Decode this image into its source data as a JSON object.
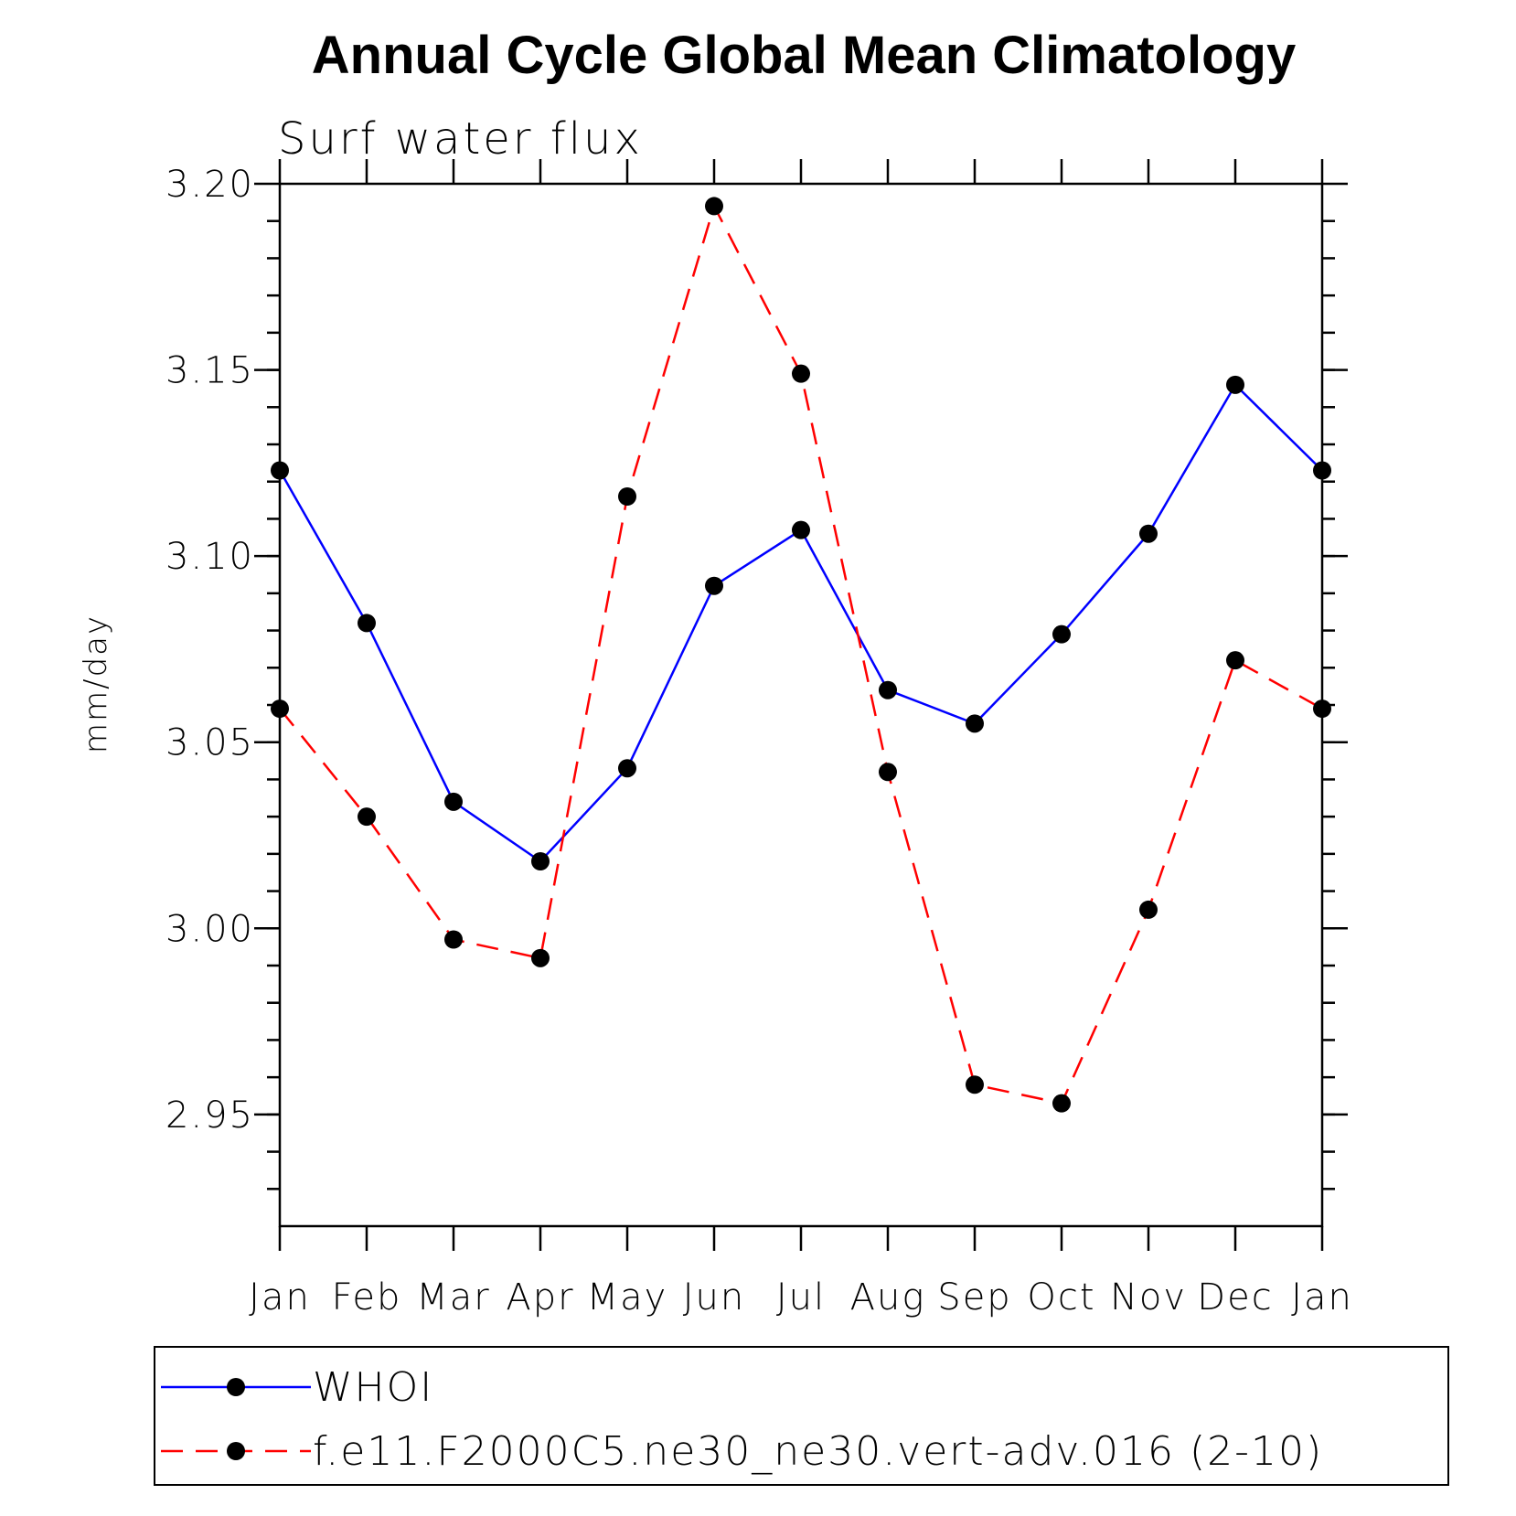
{
  "chart_data": {
    "type": "line",
    "title": "Annual Cycle Global Mean Climatology",
    "subtitle": "Surf water flux",
    "ylabel": "mm/day",
    "xlabel": "",
    "categories": [
      "Jan",
      "Feb",
      "Mar",
      "Apr",
      "May",
      "Jun",
      "Jul",
      "Aug",
      "Sep",
      "Oct",
      "Nov",
      "Dec",
      "Jan"
    ],
    "ylim": [
      2.92,
      3.2
    ],
    "yticks": [
      2.95,
      3.0,
      3.05,
      3.1,
      3.15,
      3.2
    ],
    "ytick_labels": [
      "2.95",
      "3.00",
      "3.05",
      "3.10",
      "3.15",
      "3.20"
    ],
    "yminor_step": 0.01,
    "series": [
      {
        "name": "WHOI",
        "color": "#0000ff",
        "dash": "solid",
        "marker": "circle",
        "values": [
          3.123,
          3.082,
          3.034,
          3.018,
          3.043,
          3.092,
          3.107,
          3.064,
          3.055,
          3.079,
          3.106,
          3.146,
          3.123
        ]
      },
      {
        "name": "f.e11.F2000C5.ne30_ne30.vert-adv.016 (2-10)",
        "color": "#ff0000",
        "dash": "dashed",
        "marker": "circle",
        "values": [
          3.059,
          3.03,
          2.997,
          2.992,
          3.116,
          3.194,
          3.149,
          3.042,
          2.958,
          2.953,
          3.005,
          3.072,
          3.059
        ]
      }
    ],
    "legend": "bottom"
  }
}
